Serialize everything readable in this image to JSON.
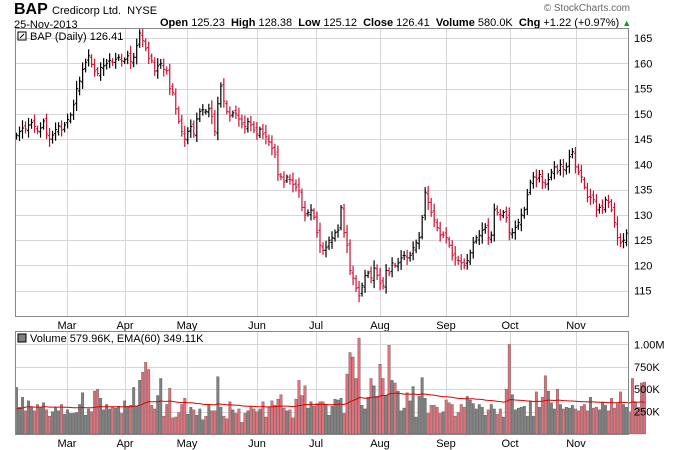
{
  "header": {
    "symbol": "BAP",
    "company": "Credicorp Ltd.",
    "exchange": "NYSE",
    "date": "25-Nov-2013",
    "open_label": "Open",
    "open": "125.23",
    "high_label": "High",
    "high": "128.38",
    "low_label": "Low",
    "low": "125.12",
    "close_label": "Close",
    "close": "126.41",
    "volume_label": "Volume",
    "volume": "580.0K",
    "chg_label": "Chg",
    "chg": "+1.22 (+0.97%)",
    "watermark": "© StockCharts.com",
    "up_arrow": "▲"
  },
  "price_legend": "BAP (Daily) 126.41",
  "volume_legend": "Volume 579.96K, EMA(60) 349.11K",
  "colors": {
    "up": "#000000",
    "down": "#cc1133",
    "vol_up": "#808080",
    "vol_down": "#e0707a",
    "ema": "#dd0000",
    "grid": "#d7d7d7"
  },
  "chart_data": [
    {
      "type": "ohlc",
      "title": "BAP (Daily) 126.41",
      "x_axis_labels": [
        "Mar",
        "Apr",
        "May",
        "Jun",
        "Jul",
        "Aug",
        "Sep",
        "Oct",
        "Nov"
      ],
      "ylim": [
        110,
        167
      ],
      "yticks": [
        115,
        120,
        125,
        130,
        135,
        140,
        145,
        150,
        155,
        160,
        165
      ],
      "grid": true,
      "closes": [
        145.8,
        146.5,
        147.2,
        147.0,
        147.8,
        148.3,
        147.5,
        146.6,
        147.2,
        148.6,
        146.0,
        145.0,
        145.8,
        146.9,
        147.6,
        146.8,
        147.8,
        148.9,
        149.8,
        151.8,
        155.0,
        156.5,
        158.8,
        160.2,
        161.5,
        159.8,
        158.5,
        158.0,
        159.2,
        159.5,
        160.0,
        160.6,
        160.2,
        160.8,
        161.2,
        160.5,
        160.7,
        161.5,
        160.4,
        161.2,
        163.5,
        166.0,
        164.5,
        163.0,
        161.0,
        160.5,
        158.5,
        159.5,
        160.0,
        158.8,
        158.5,
        155.0,
        154.2,
        151.0,
        148.5,
        146.5,
        145.0,
        146.5,
        147.5,
        146.0,
        149.0,
        150.5,
        150.8,
        150.5,
        151.0,
        149.5,
        146.5,
        152.0,
        155.5,
        152.5,
        150.5,
        149.6,
        150.2,
        150.0,
        149.0,
        148.0,
        147.5,
        148.5,
        147.8,
        146.8,
        146.0,
        147.0,
        146.0,
        145.5,
        144.5,
        143.2,
        142.0,
        138.0,
        137.5,
        136.5,
        137.5,
        137.0,
        136.0,
        135.5,
        134.8,
        131.5,
        130.0,
        130.5,
        131.0,
        129.5,
        126.5,
        124.0,
        123.0,
        123.5,
        125.0,
        125.5,
        126.5,
        127.0,
        131.5,
        126.5,
        124.0,
        119.0,
        117.5,
        115.5,
        114.0,
        116.0,
        118.0,
        118.5,
        117.5,
        119.5,
        118.0,
        116.5,
        116.0,
        119.0,
        118.5,
        120.5,
        120.0,
        120.5,
        121.5,
        122.0,
        121.5,
        122.0,
        123.5,
        124.5,
        125.5,
        129.5,
        134.5,
        132.5,
        130.5,
        129.0,
        127.5,
        126.0,
        126.0,
        125.5,
        124.0,
        122.0,
        121.5,
        121.0,
        120.5,
        120.0,
        121.0,
        122.5,
        124.5,
        125.5,
        126.0,
        127.0,
        127.5,
        125.5,
        126.0,
        131.0,
        130.5,
        130.0,
        130.5,
        129.5,
        126.5,
        126.5,
        127.5,
        128.5,
        130.0,
        131.0,
        134.0,
        136.5,
        137.5,
        137.0,
        138.0,
        136.5,
        136.0,
        137.0,
        138.5,
        139.5,
        138.5,
        140.0,
        139.0,
        139.5,
        141.5,
        142.5,
        139.5,
        138.5,
        137.5,
        135.5,
        133.5,
        133.5,
        133.0,
        131.0,
        131.5,
        131.5,
        133.0,
        132.5,
        131.0,
        128.5,
        125.5,
        124.5,
        125.0,
        126.41
      ]
    },
    {
      "type": "bar",
      "title": "Volume 579.96K, EMA(60) 349.11K",
      "x_axis_labels": [
        "Mar",
        "Apr",
        "May",
        "Jun",
        "Jul",
        "Aug",
        "Sep",
        "Oct",
        "Nov"
      ],
      "ylim": [
        0,
        1150000
      ],
      "yticks": [
        250000,
        500000,
        750000,
        1000000
      ],
      "ytick_labels": [
        "250K",
        "500K",
        "750K",
        "1.00M"
      ],
      "series": [
        {
          "name": "Volume",
          "values": [
            520000,
            300000,
            410000,
            260000,
            370000,
            300000,
            260000,
            330000,
            300000,
            350000,
            270000,
            200000,
            250000,
            300000,
            260000,
            330000,
            220000,
            270000,
            230000,
            230000,
            240000,
            330000,
            460000,
            210000,
            280000,
            250000,
            480000,
            500000,
            400000,
            270000,
            330000,
            280000,
            300000,
            290000,
            310000,
            230000,
            370000,
            310000,
            320000,
            520000,
            310000,
            600000,
            690000,
            800000,
            720000,
            320000,
            280000,
            430000,
            620000,
            200000,
            330000,
            510000,
            180000,
            190000,
            240000,
            330000,
            400000,
            220000,
            300000,
            270000,
            210000,
            280000,
            160000,
            200000,
            320000,
            260000,
            260000,
            640000,
            300000,
            200000,
            170000,
            360000,
            270000,
            230000,
            280000,
            130000,
            230000,
            260000,
            310000,
            280000,
            250000,
            280000,
            360000,
            190000,
            300000,
            370000,
            320000,
            390000,
            440000,
            290000,
            260000,
            270000,
            180000,
            390000,
            600000,
            430000,
            540000,
            290000,
            360000,
            310000,
            340000,
            360000,
            360000,
            330000,
            210000,
            310000,
            390000,
            380000,
            400000,
            230000,
            670000,
            910000,
            860000,
            620000,
            1070000,
            320000,
            280000,
            410000,
            620000,
            540000,
            420000,
            780000,
            620000,
            430000,
            990000,
            600000,
            570000,
            480000,
            260000,
            290000,
            460000,
            370000,
            530000,
            190000,
            420000,
            630000,
            400000,
            230000,
            320000,
            320000,
            300000,
            230000,
            250000,
            380000,
            350000,
            330000,
            200000,
            240000,
            330000,
            300000,
            420000,
            380000,
            340000,
            280000,
            330000,
            300000,
            210000,
            270000,
            330000,
            280000,
            220000,
            280000,
            190000,
            500000,
            1000000,
            440000,
            270000,
            290000,
            300000,
            310000,
            200000,
            370000,
            200000,
            470000,
            300000,
            410000,
            650000,
            480000,
            350000,
            280000,
            500000,
            330000,
            280000,
            300000,
            290000,
            320000,
            280000,
            260000,
            310000,
            330000,
            260000,
            410000,
            290000,
            300000,
            270000,
            350000,
            320000,
            260000,
            400000,
            290000,
            340000,
            470000,
            330000,
            300000,
            250000,
            620000,
            350000,
            300000,
            570000,
            580000
          ]
        },
        {
          "name": "EMA(60)",
          "values": [
            280000,
            285000,
            290000,
            300000,
            305000,
            305000,
            300000,
            300000,
            300000,
            305000,
            305000,
            300000,
            300000,
            300000,
            300000,
            300000,
            298000,
            298000,
            296000,
            294000,
            292000,
            292000,
            296000,
            294000,
            294000,
            292000,
            297000,
            303000,
            306000,
            305000,
            306000,
            305000,
            305000,
            305000,
            305000,
            303000,
            305000,
            305000,
            305000,
            312000,
            312000,
            321000,
            334000,
            350000,
            362000,
            361000,
            359000,
            361000,
            369000,
            365000,
            364000,
            369000,
            363000,
            357000,
            353000,
            352000,
            354000,
            350000,
            348000,
            346000,
            341000,
            339000,
            333000,
            329000,
            329000,
            327000,
            325000,
            335000,
            334000,
            330000,
            325000,
            326000,
            324000,
            321000,
            320000,
            314000,
            311000,
            309000,
            309000,
            308000,
            306000,
            305000,
            307000,
            303000,
            303000,
            305000,
            305000,
            308000,
            312000,
            312000,
            311000,
            310000,
            306000,
            309000,
            318000,
            322000,
            329000,
            328000,
            329000,
            328000,
            329000,
            330000,
            331000,
            331000,
            327000,
            327000,
            329000,
            331000,
            333000,
            330000,
            341000,
            359000,
            376000,
            385000,
            407000,
            404000,
            400000,
            400000,
            408000,
            412000,
            412000,
            424000,
            430000,
            430000,
            447000,
            452000,
            456000,
            457000,
            451000,
            446000,
            446000,
            444000,
            447000,
            442000,
            441000,
            447000,
            446000,
            440000,
            436000,
            432000,
            428000,
            422000,
            416000,
            415000,
            413000,
            410000,
            403000,
            398000,
            396000,
            393000,
            394000,
            394000,
            393000,
            389000,
            387000,
            385000,
            378000,
            375000,
            373000,
            370000,
            364000,
            362000,
            356000,
            361000,
            382000,
            384000,
            380000,
            377000,
            375000,
            373000,
            368000,
            368000,
            362000,
            366000,
            364000,
            365000,
            374000,
            378000,
            377000,
            374000,
            378000,
            376000,
            373000,
            371000,
            369000,
            368000,
            366000,
            363000,
            362000,
            361000,
            358000,
            360000,
            358000,
            356000,
            354000,
            354000,
            353000,
            350000,
            352000,
            350000,
            350000,
            354000,
            353000,
            351000,
            348000,
            357000,
            357000,
            355000,
            361000,
            349110
          ]
        }
      ]
    }
  ]
}
